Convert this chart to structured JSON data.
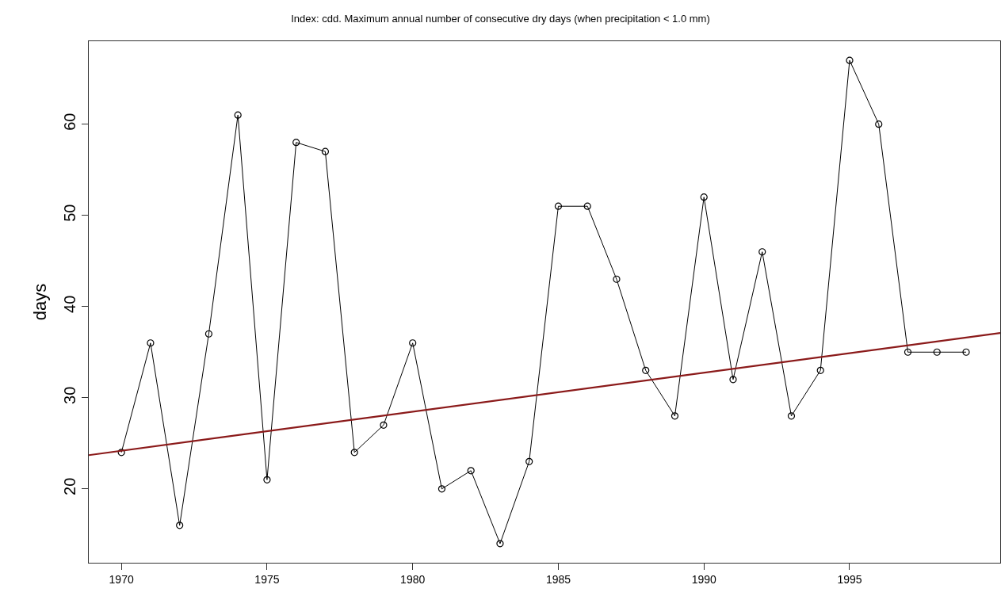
{
  "chart_data": {
    "type": "line",
    "title": "Index: cdd. Maximum annual number of consecutive dry days (when precipitation < 1.0 mm)",
    "ylabel": "days",
    "x": [
      1970,
      1971,
      1972,
      1973,
      1974,
      1975,
      1976,
      1977,
      1978,
      1979,
      1980,
      1981,
      1982,
      1983,
      1984,
      1985,
      1986,
      1987,
      1988,
      1989,
      1990,
      1991,
      1992,
      1993,
      1994,
      1995,
      1996,
      1997,
      1998,
      1999
    ],
    "series": [
      {
        "color": "#000000",
        "values": [
          24,
          36,
          16,
          37,
          61,
          21,
          58,
          57,
          24,
          27,
          36,
          20,
          22,
          14,
          23,
          51,
          51,
          43,
          33,
          28,
          52,
          32,
          46,
          28,
          33,
          67,
          60,
          35,
          35,
          35
        ]
      },
      {
        "type": "line",
        "color": "#8b1a1a",
        "x": [
          1968.88,
          2000.17
        ],
        "values": [
          23.7,
          37.1
        ],
        "marker": "none"
      }
    ],
    "xlim": [
      1968.88,
      2000.17
    ],
    "xticks": [
      1970,
      1975,
      1980,
      1985,
      1990,
      1995
    ],
    "ylim": [
      11.9,
      69.1
    ],
    "yticks": [
      20,
      30,
      40,
      50,
      60
    ],
    "marker": "circle",
    "line_style": "solid"
  }
}
